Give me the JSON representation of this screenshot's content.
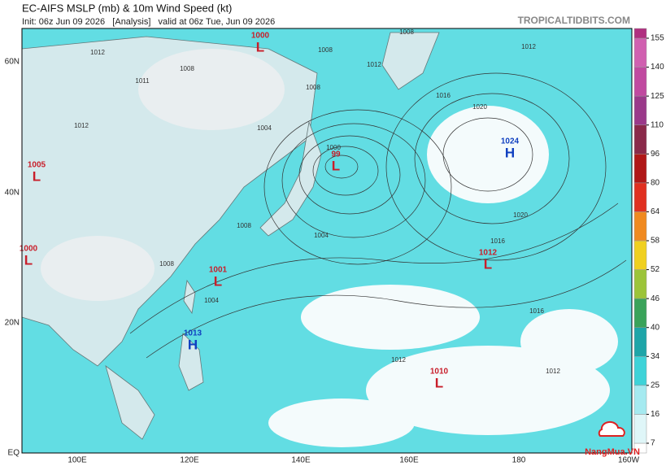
{
  "header": {
    "title": "EC-AIFS MSLP (mb) & 10m Wind Speed (kt)",
    "subtitle": "Init: 06z Jun 09 2026   [Analysis]   valid at 06z Tue, Jun 09 2026",
    "source": "TROPICALTIDBITS.COM"
  },
  "map": {
    "lat_labels": [
      "60N",
      "40N",
      "20N",
      "EQ"
    ],
    "lon_labels": [
      "100E",
      "120E",
      "140E",
      "160E",
      "180",
      "160W"
    ],
    "pressure_centers": [
      {
        "value": "1000",
        "letter": "L"
      },
      {
        "value": "1005",
        "letter": "L"
      },
      {
        "value": "1000",
        "letter": "L"
      },
      {
        "value": "1001",
        "letter": "L"
      },
      {
        "value": "99",
        "letter": "L"
      },
      {
        "value": "1013",
        "letter": "H"
      },
      {
        "value": "1024",
        "letter": "H"
      },
      {
        "value": "1012",
        "letter": "L"
      },
      {
        "value": "1010",
        "letter": "L"
      }
    ],
    "isobar_labels": [
      "1012",
      "1008",
      "1008",
      "1012",
      "1008",
      "1012",
      "1016",
      "1020",
      "1011",
      "1012",
      "1004",
      "1008",
      "1000",
      "1016",
      "1020",
      "1016",
      "1012",
      "1012",
      "1004",
      "1004",
      "1008",
      "1008"
    ]
  },
  "colorbar": {
    "ticks": [
      7,
      16,
      25,
      34,
      40,
      46,
      52,
      58,
      64,
      80,
      96,
      110,
      125,
      140,
      155
    ],
    "colors": [
      "#dff6f8",
      "#a5eaf0",
      "#3ed3d8",
      "#1ea5a8",
      "#3aa35a",
      "#9cc43a",
      "#f0d020",
      "#f08a20",
      "#e03020",
      "#b01818",
      "#8a2a4a",
      "#9a3a8a",
      "#c04aa0",
      "#d060b0",
      "#b03080"
    ]
  },
  "watermark": "NangMua.VN"
}
